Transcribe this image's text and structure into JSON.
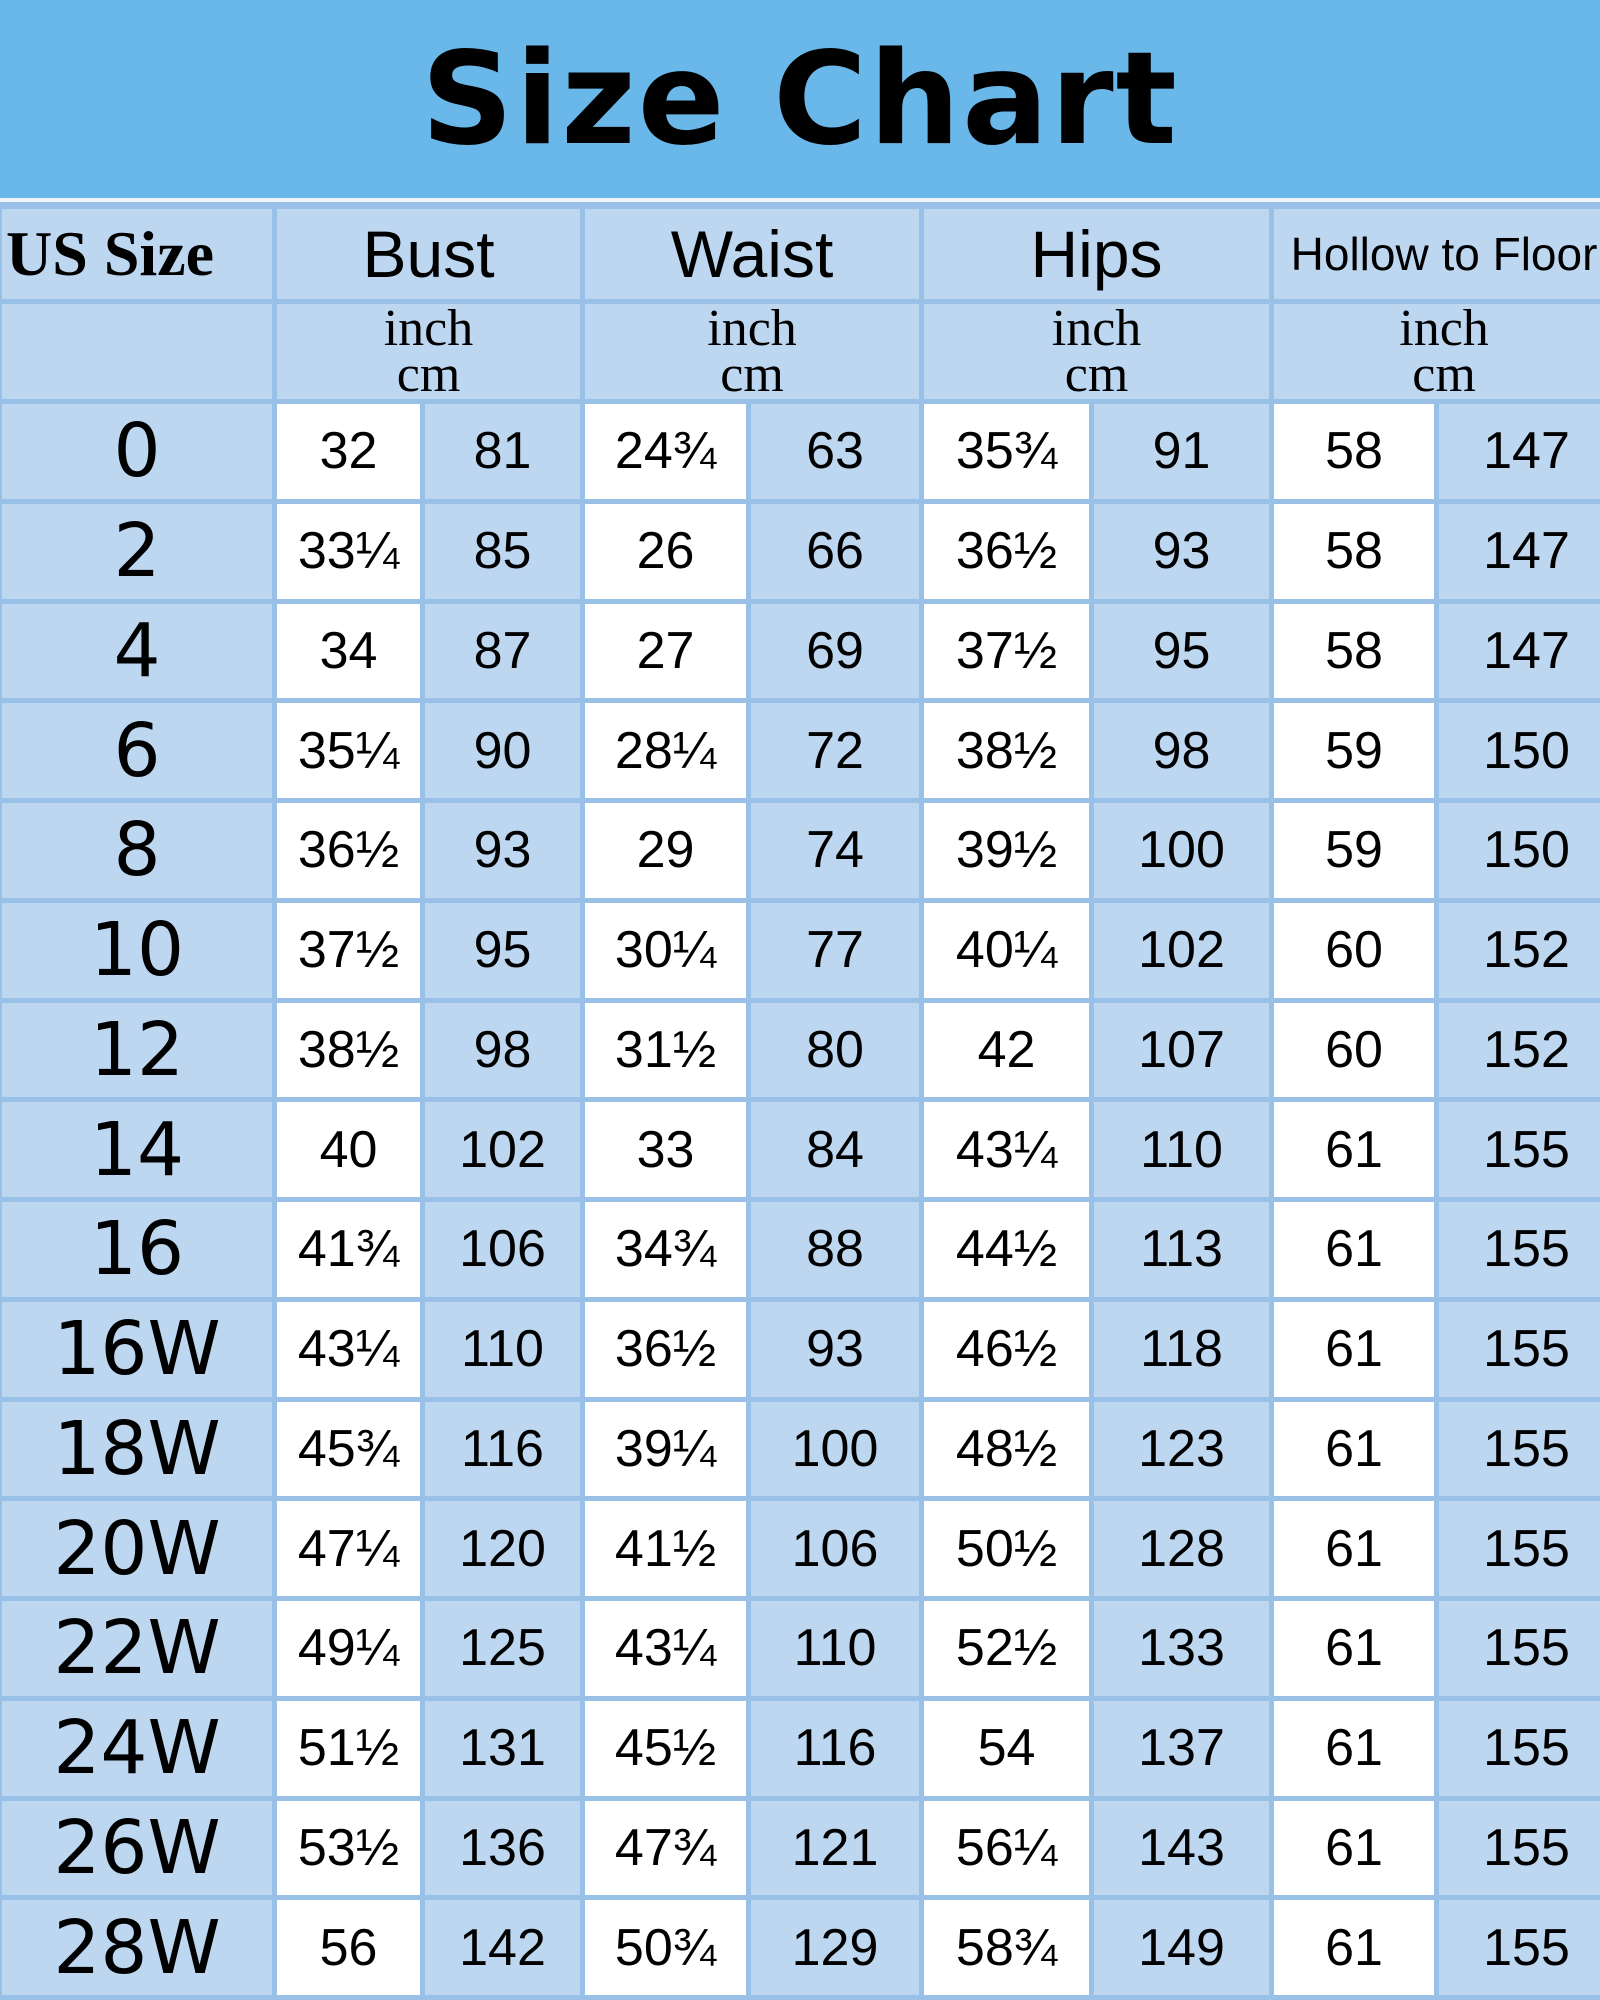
{
  "title": "Size Chart",
  "colors": {
    "title_bg": "#6ab8ea",
    "cell_bg": "#bdd7f1",
    "grid": "#99c0e6",
    "highlight": "#ffffff"
  },
  "headers": {
    "us_size": "US Size",
    "groups": [
      "Bust",
      "Waist",
      "Hips",
      "Hollow to Floor"
    ],
    "unit_inch": "inch",
    "unit_cm": "cm"
  },
  "rows": [
    {
      "size": "0",
      "values": [
        "32",
        "81",
        "24¾",
        "63",
        "35¾",
        "91",
        "58",
        "147"
      ]
    },
    {
      "size": "2",
      "values": [
        "33¼",
        "85",
        "26",
        "66",
        "36½",
        "93",
        "58",
        "147"
      ]
    },
    {
      "size": "4",
      "values": [
        "34",
        "87",
        "27",
        "69",
        "37½",
        "95",
        "58",
        "147"
      ]
    },
    {
      "size": "6",
      "values": [
        "35¼",
        "90",
        "28¼",
        "72",
        "38½",
        "98",
        "59",
        "150"
      ]
    },
    {
      "size": "8",
      "values": [
        "36½",
        "93",
        "29",
        "74",
        "39½",
        "100",
        "59",
        "150"
      ]
    },
    {
      "size": "10",
      "values": [
        "37½",
        "95",
        "30¼",
        "77",
        "40¼",
        "102",
        "60",
        "152"
      ]
    },
    {
      "size": "12",
      "values": [
        "38½",
        "98",
        "31½",
        "80",
        "42",
        "107",
        "60",
        "152"
      ]
    },
    {
      "size": "14",
      "values": [
        "40",
        "102",
        "33",
        "84",
        "43¼",
        "110",
        "61",
        "155"
      ]
    },
    {
      "size": "16",
      "values": [
        "41¾",
        "106",
        "34¾",
        "88",
        "44½",
        "113",
        "61",
        "155"
      ]
    },
    {
      "size": "16W",
      "values": [
        "43¼",
        "110",
        "36½",
        "93",
        "46½",
        "118",
        "61",
        "155"
      ]
    },
    {
      "size": "18W",
      "values": [
        "45¾",
        "116",
        "39¼",
        "100",
        "48½",
        "123",
        "61",
        "155"
      ]
    },
    {
      "size": "20W",
      "values": [
        "47¼",
        "120",
        "41½",
        "106",
        "50½",
        "128",
        "61",
        "155"
      ]
    },
    {
      "size": "22W",
      "values": [
        "49¼",
        "125",
        "43¼",
        "110",
        "52½",
        "133",
        "61",
        "155"
      ]
    },
    {
      "size": "24W",
      "values": [
        "51½",
        "131",
        "45½",
        "116",
        "54",
        "137",
        "61",
        "155"
      ]
    },
    {
      "size": "26W",
      "values": [
        "53½",
        "136",
        "47¾",
        "121",
        "56¼",
        "143",
        "61",
        "155"
      ]
    },
    {
      "size": "28W",
      "values": [
        "56",
        "142",
        "50¾",
        "129",
        "58¾",
        "149",
        "61",
        "155"
      ]
    }
  ]
}
